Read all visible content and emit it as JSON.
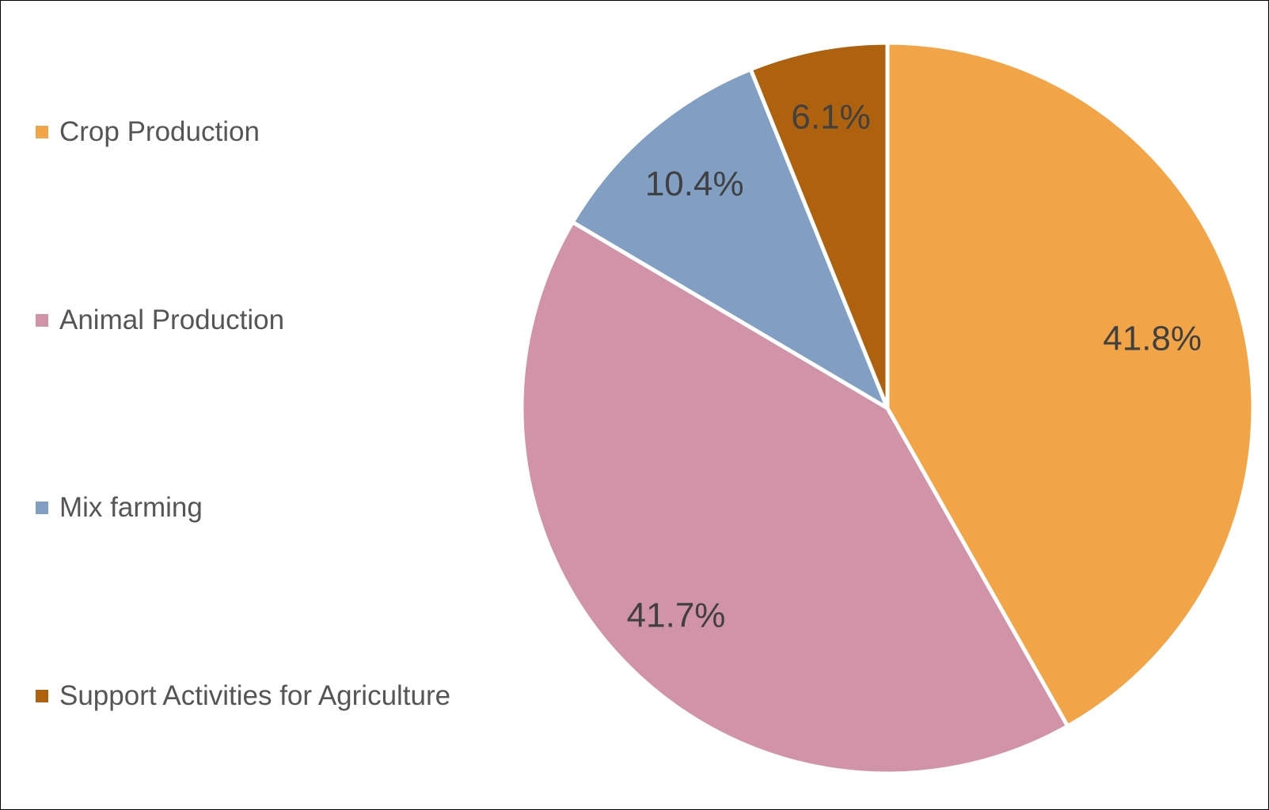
{
  "chart_data": {
    "type": "pie",
    "title": "",
    "categories": [
      "Crop Production",
      "Animal Production",
      "Mix farming",
      "Support Activities for Agriculture"
    ],
    "values": [
      41.8,
      41.7,
      10.4,
      6.1
    ],
    "value_labels": [
      "41.8%",
      "41.7%",
      "10.4%",
      "6.1%"
    ],
    "colors": [
      "#F2A546",
      "#D193A7",
      "#809FC3",
      "#AF620D"
    ],
    "legend": "left",
    "direction": "clockwise",
    "start_angle_deg": 0
  }
}
